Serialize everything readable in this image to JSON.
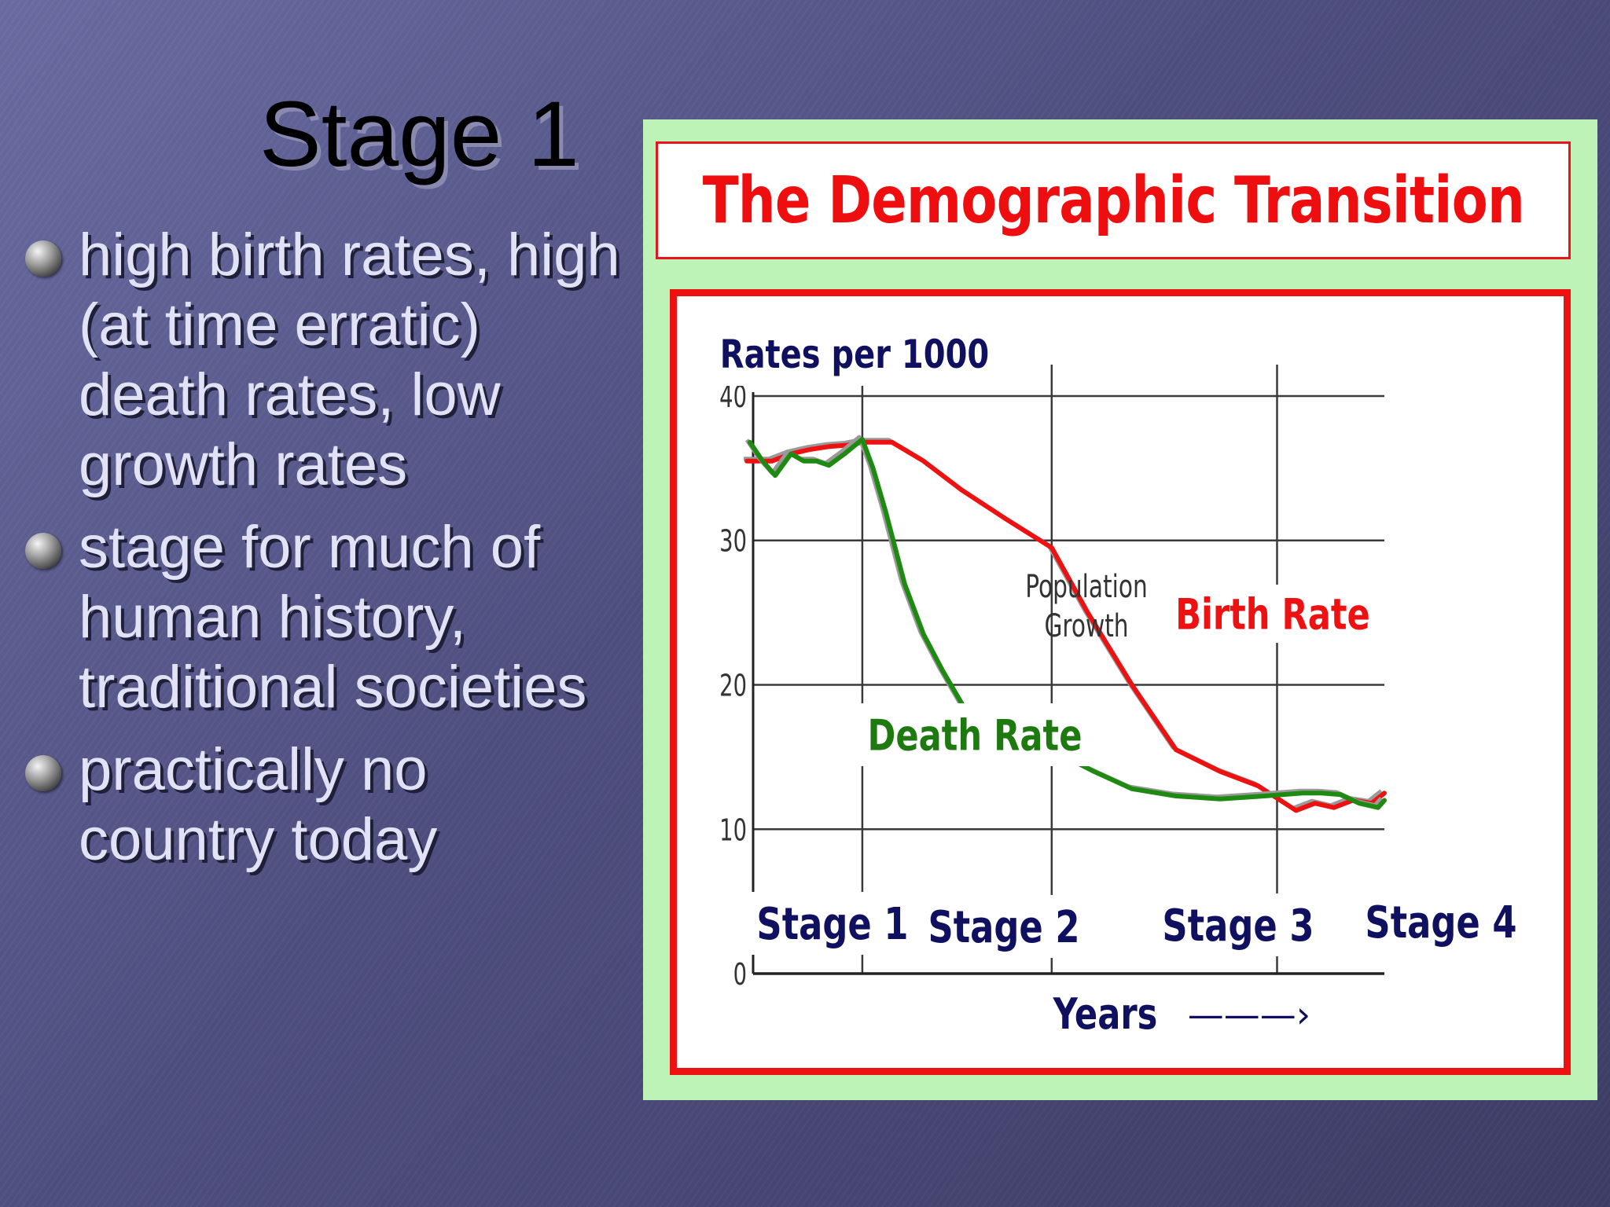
{
  "slide": {
    "title": "Stage 1",
    "bullets": [
      "high birth rates, high (at time erratic) death rates, low growth rates",
      "stage for much of human history, traditional societies",
      "practically no country today"
    ]
  },
  "chart_data": {
    "type": "line",
    "title": "The Demographic Transition",
    "ylabel": "Rates per 1000",
    "xlabel": "Years",
    "xlim": [
      0,
      100
    ],
    "ylim": [
      0,
      40
    ],
    "yticks": [
      0,
      10,
      20,
      30,
      40
    ],
    "grid": true,
    "stages": [
      {
        "label": "Stage 1",
        "start": 0,
        "end": 17.3
      },
      {
        "label": "Stage 2",
        "start": 17.3,
        "end": 47.3
      },
      {
        "label": "Stage 3",
        "start": 47.3,
        "end": 83
      },
      {
        "label": "Stage 4",
        "start": 83,
        "end": 100
      }
    ],
    "series": [
      {
        "name": "Birth Rate",
        "color": "#ee1111",
        "x": [
          -1,
          3,
          6,
          9,
          12,
          15,
          17.3,
          22,
          27,
          33,
          40,
          47.3,
          53,
          60,
          67,
          74,
          80,
          86,
          89,
          92,
          95,
          98,
          100
        ],
        "y": [
          35.5,
          35.5,
          36,
          36.3,
          36.5,
          36.6,
          36.8,
          36.8,
          35.5,
          33.5,
          31.5,
          29.5,
          25,
          20,
          15.5,
          14,
          13,
          11.3,
          11.8,
          11.5,
          12,
          11.8,
          12.5
        ]
      },
      {
        "name": "Death Rate",
        "color": "#1e8a12",
        "x": [
          -0.5,
          1.5,
          3.5,
          6,
          8,
          10,
          12,
          14.5,
          17.3,
          19,
          21,
          24,
          27,
          30,
          34,
          40,
          47.3,
          54,
          60,
          67,
          74,
          81,
          87,
          90,
          93,
          96,
          99,
          100
        ],
        "y": [
          36.8,
          35.5,
          34.5,
          36,
          35.5,
          35.5,
          35.2,
          36,
          37,
          35,
          32,
          27,
          23.5,
          21,
          18,
          16.5,
          15.5,
          14,
          12.8,
          12.3,
          12.1,
          12.3,
          12.5,
          12.5,
          12.4,
          11.8,
          11.5,
          12
        ]
      }
    ],
    "annotations": [
      "Population Growth"
    ],
    "axis_arrow": "———›"
  }
}
